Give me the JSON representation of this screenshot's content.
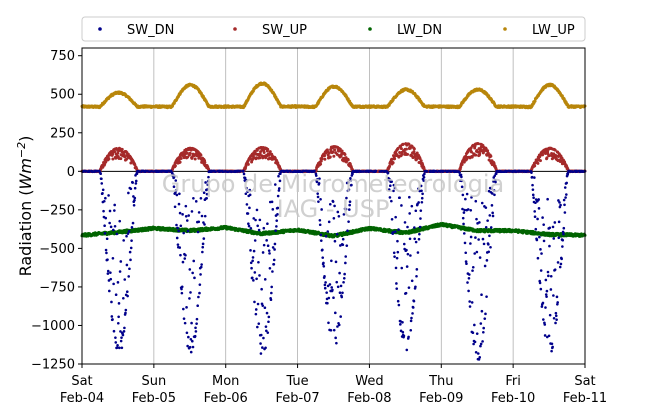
{
  "chart_data": {
    "type": "scatter",
    "ylabel": "Radiation (",
    "ylabel_unit_main": "Wm",
    "ylabel_unit_exp": "−2",
    "ylabel_close": ")",
    "ylim": [
      -1250,
      800
    ],
    "yticks": [
      -1250,
      -1000,
      -750,
      -500,
      -250,
      0,
      250,
      500,
      750
    ],
    "ytick_labels": [
      "−1250",
      "−1000",
      "−750",
      "−500",
      "−250",
      "0",
      "250",
      "500",
      "750"
    ],
    "xlim": [
      "2018-02-04T00:00",
      "2018-02-11T00:00"
    ],
    "xticks": [
      {
        "day": "Sat",
        "date": "Feb-04"
      },
      {
        "day": "Sun",
        "date": "Feb-05"
      },
      {
        "day": "Mon",
        "date": "Feb-06"
      },
      {
        "day": "Tue",
        "date": "Feb-07"
      },
      {
        "day": "Wed",
        "date": "Feb-08"
      },
      {
        "day": "Thu",
        "date": "Feb-09"
      },
      {
        "day": "Fri",
        "date": "Feb-10"
      },
      {
        "day": "Sat",
        "date": "Feb-11"
      }
    ],
    "grid": "vertical",
    "legend_position": "top",
    "zero_line": true,
    "watermark_lines": [
      "Grupo de Micrometeorologia",
      "IAG - USP"
    ],
    "series": [
      {
        "name": "SW_DN",
        "color": "#00008b",
        "daily_min": [
          -1200,
          -1180,
          -1200,
          -1140,
          -1170,
          -1250,
          -1200
        ]
      },
      {
        "name": "SW_UP",
        "color": "#a52a2a",
        "daily_max": [
          150,
          150,
          155,
          160,
          180,
          180,
          150
        ]
      },
      {
        "name": "LW_DN",
        "color": "#006400",
        "values": [
          [
            "2018-02-04T00:00",
            -415
          ],
          [
            "2018-02-04T12:00",
            -395
          ],
          [
            "2018-02-05T00:00",
            -370
          ],
          [
            "2018-02-05T12:00",
            -385
          ],
          [
            "2018-02-06T00:00",
            -365
          ],
          [
            "2018-02-06T12:00",
            -405
          ],
          [
            "2018-02-07T00:00",
            -380
          ],
          [
            "2018-02-07T12:00",
            -420
          ],
          [
            "2018-02-08T00:00",
            -370
          ],
          [
            "2018-02-08T12:00",
            -400
          ],
          [
            "2018-02-09T00:00",
            -345
          ],
          [
            "2018-02-09T12:00",
            -385
          ],
          [
            "2018-02-10T00:00",
            -385
          ],
          [
            "2018-02-10T12:00",
            -410
          ],
          [
            "2018-02-11T00:00",
            -415
          ]
        ]
      },
      {
        "name": "LW_UP",
        "color": "#b8860b",
        "night_level": 420,
        "daily_peak": [
          510,
          560,
          570,
          550,
          530,
          530,
          560
        ]
      }
    ]
  }
}
